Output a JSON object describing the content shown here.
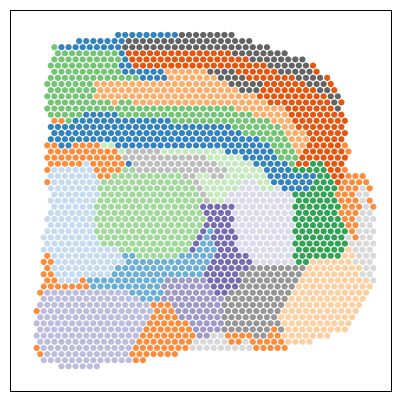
{
  "chart_data": {
    "type": "scatter",
    "title": "",
    "xlabel": "",
    "ylabel": "",
    "xlim": [
      0,
      1
    ],
    "ylim": [
      0,
      1
    ],
    "ticks": false,
    "grid": false,
    "legend": "none",
    "marker": "circle",
    "palette": {
      "cluster-0": "#636363",
      "cluster-1": "#e6550d",
      "cluster-2": "#fd8d3c",
      "cluster-3": "#fdae6b",
      "cluster-4": "#fdd0a2",
      "cluster-5": "#31a354",
      "cluster-6": "#74c476",
      "cluster-7": "#a1d99b",
      "cluster-8": "#c7e9c0",
      "cluster-9": "#3182bd",
      "cluster-10": "#6baed6",
      "cluster-11": "#c6dbef",
      "cluster-12": "#756bb1",
      "cluster-13": "#9e9ac8",
      "cluster-14": "#bcbddc",
      "cluster-15": "#dadaeb",
      "cluster-16": "#969696",
      "cluster-17": "#bdbdbd",
      "cluster-18": "#d9d9d9"
    },
    "series": [
      {
        "cluster": 0,
        "color": "#636363",
        "regions": [
          [
            [
              0.3,
              0.93
            ],
            [
              0.58,
              0.93
            ],
            [
              0.8,
              0.84
            ],
            [
              0.86,
              0.78
            ],
            [
              0.86,
              0.74
            ],
            [
              0.8,
              0.8
            ],
            [
              0.58,
              0.89
            ],
            [
              0.3,
              0.89
            ]
          ]
        ]
      },
      {
        "cluster": 1,
        "color": "#e6550d",
        "regions": [
          [
            [
              0.3,
              0.89
            ],
            [
              0.58,
              0.89
            ],
            [
              0.8,
              0.8
            ],
            [
              0.86,
              0.74
            ],
            [
              0.88,
              0.6
            ],
            [
              0.86,
              0.52
            ],
            [
              0.83,
              0.58
            ],
            [
              0.8,
              0.7
            ],
            [
              0.72,
              0.78
            ],
            [
              0.58,
              0.84
            ],
            [
              0.32,
              0.85
            ]
          ]
        ]
      },
      {
        "cluster": 2,
        "color": "#fd8d3c",
        "regions": [
          [
            [
              0.9,
              0.52
            ],
            [
              0.94,
              0.52
            ],
            [
              0.94,
              0.36
            ],
            [
              0.9,
              0.36
            ]
          ],
          [
            [
              0.62,
              0.3
            ],
            [
              0.7,
              0.28
            ],
            [
              0.66,
              0.14
            ],
            [
              0.56,
              0.12
            ],
            [
              0.58,
              0.22
            ]
          ],
          [
            [
              0.36,
              0.22
            ],
            [
              0.44,
              0.22
            ],
            [
              0.5,
              0.14
            ],
            [
              0.42,
              0.12
            ],
            [
              0.34,
              0.16
            ]
          ],
          [
            [
              0.08,
              0.32
            ],
            [
              0.12,
              0.32
            ],
            [
              0.12,
              0.16
            ],
            [
              0.08,
              0.16
            ]
          ],
          [
            [
              0.1,
              0.62
            ],
            [
              0.2,
              0.62
            ],
            [
              0.2,
              0.58
            ],
            [
              0.1,
              0.58
            ]
          ]
        ]
      },
      {
        "cluster": 3,
        "color": "#fdae6b",
        "regions": [
          [
            [
              0.22,
              0.82
            ],
            [
              0.58,
              0.8
            ],
            [
              0.72,
              0.74
            ],
            [
              0.78,
              0.66
            ],
            [
              0.76,
              0.6
            ],
            [
              0.7,
              0.7
            ],
            [
              0.58,
              0.75
            ],
            [
              0.22,
              0.76
            ]
          ]
        ]
      },
      {
        "cluster": 4,
        "color": "#fdd0a2",
        "regions": [
          [
            [
              0.78,
              0.34
            ],
            [
              0.9,
              0.38
            ],
            [
              0.94,
              0.26
            ],
            [
              0.86,
              0.16
            ],
            [
              0.72,
              0.12
            ],
            [
              0.7,
              0.22
            ]
          ]
        ]
      },
      {
        "cluster": 5,
        "color": "#31a354",
        "regions": [
          [
            [
              0.74,
              0.5
            ],
            [
              0.84,
              0.52
            ],
            [
              0.88,
              0.44
            ],
            [
              0.88,
              0.36
            ],
            [
              0.82,
              0.34
            ],
            [
              0.76,
              0.4
            ]
          ]
        ]
      },
      {
        "cluster": 6,
        "color": "#74c476",
        "regions": [
          [
            [
              0.1,
              0.9
            ],
            [
              0.28,
              0.9
            ],
            [
              0.3,
              0.86
            ],
            [
              0.22,
              0.82
            ],
            [
              0.22,
              0.74
            ],
            [
              0.14,
              0.7
            ],
            [
              0.12,
              0.76
            ],
            [
              0.1,
              0.84
            ]
          ],
          [
            [
              0.28,
              0.76
            ],
            [
              0.58,
              0.75
            ],
            [
              0.7,
              0.7
            ],
            [
              0.76,
              0.62
            ],
            [
              0.74,
              0.58
            ],
            [
              0.66,
              0.66
            ],
            [
              0.56,
              0.7
            ],
            [
              0.3,
              0.72
            ]
          ]
        ]
      },
      {
        "cluster": 7,
        "color": "#a1d99b",
        "regions": [
          [
            [
              0.24,
              0.56
            ],
            [
              0.34,
              0.58
            ],
            [
              0.48,
              0.56
            ],
            [
              0.52,
              0.48
            ],
            [
              0.48,
              0.38
            ],
            [
              0.4,
              0.34
            ],
            [
              0.3,
              0.36
            ],
            [
              0.22,
              0.4
            ],
            [
              0.22,
              0.48
            ]
          ]
        ]
      },
      {
        "cluster": 8,
        "color": "#c7e9c0",
        "regions": [
          [
            [
              0.2,
              0.66
            ],
            [
              0.3,
              0.7
            ],
            [
              0.56,
              0.68
            ],
            [
              0.66,
              0.62
            ],
            [
              0.72,
              0.56
            ],
            [
              0.68,
              0.52
            ],
            [
              0.6,
              0.58
            ],
            [
              0.46,
              0.62
            ],
            [
              0.3,
              0.62
            ]
          ]
        ]
      },
      {
        "cluster": 9,
        "color": "#3182bd",
        "regions": [
          [
            [
              0.1,
              0.7
            ],
            [
              0.14,
              0.7
            ],
            [
              0.22,
              0.74
            ],
            [
              0.3,
              0.72
            ],
            [
              0.56,
              0.7
            ],
            [
              0.66,
              0.66
            ],
            [
              0.74,
              0.58
            ],
            [
              0.8,
              0.58
            ],
            [
              0.78,
              0.52
            ],
            [
              0.72,
              0.52
            ],
            [
              0.64,
              0.6
            ],
            [
              0.54,
              0.64
            ],
            [
              0.3,
              0.64
            ],
            [
              0.2,
              0.66
            ],
            [
              0.14,
              0.64
            ],
            [
              0.1,
              0.66
            ]
          ],
          [
            [
              0.2,
              0.94
            ],
            [
              0.26,
              0.94
            ],
            [
              0.26,
              0.92
            ],
            [
              0.2,
              0.92
            ]
          ]
        ]
      },
      {
        "cluster": 10,
        "color": "#6baed6",
        "regions": [
          [
            [
              0.2,
              0.3
            ],
            [
              0.4,
              0.3
            ],
            [
              0.48,
              0.36
            ],
            [
              0.52,
              0.44
            ],
            [
              0.54,
              0.38
            ],
            [
              0.5,
              0.3
            ],
            [
              0.44,
              0.26
            ],
            [
              0.3,
              0.26
            ],
            [
              0.2,
              0.26
            ]
          ]
        ]
      },
      {
        "cluster": 11,
        "color": "#c6dbef",
        "regions": [
          [
            [
              0.1,
              0.58
            ],
            [
              0.2,
              0.6
            ],
            [
              0.24,
              0.56
            ],
            [
              0.22,
              0.46
            ],
            [
              0.22,
              0.38
            ],
            [
              0.3,
              0.34
            ],
            [
              0.22,
              0.3
            ],
            [
              0.12,
              0.28
            ],
            [
              0.1,
              0.4
            ]
          ]
        ]
      },
      {
        "cluster": 12,
        "color": "#756bb1",
        "regions": [
          [
            [
              0.5,
              0.5
            ],
            [
              0.58,
              0.5
            ],
            [
              0.6,
              0.4
            ],
            [
              0.6,
              0.28
            ],
            [
              0.56,
              0.24
            ],
            [
              0.5,
              0.28
            ],
            [
              0.54,
              0.38
            ]
          ]
        ]
      },
      {
        "cluster": 13,
        "color": "#9e9ac8",
        "regions": [
          [
            [
              0.4,
              0.3
            ],
            [
              0.5,
              0.3
            ],
            [
              0.56,
              0.24
            ],
            [
              0.58,
              0.16
            ],
            [
              0.5,
              0.14
            ],
            [
              0.44,
              0.2
            ],
            [
              0.4,
              0.24
            ]
          ]
        ]
      },
      {
        "cluster": 14,
        "color": "#bcbddc",
        "regions": [
          [
            [
              0.08,
              0.26
            ],
            [
              0.3,
              0.26
            ],
            [
              0.38,
              0.22
            ],
            [
              0.34,
              0.14
            ],
            [
              0.26,
              0.08
            ],
            [
              0.1,
              0.08
            ],
            [
              0.06,
              0.14
            ]
          ]
        ]
      },
      {
        "cluster": 15,
        "color": "#dadaeb",
        "regions": [
          [
            [
              0.58,
              0.48
            ],
            [
              0.7,
              0.5
            ],
            [
              0.74,
              0.46
            ],
            [
              0.72,
              0.38
            ],
            [
              0.64,
              0.34
            ],
            [
              0.6,
              0.38
            ]
          ]
        ]
      },
      {
        "cluster": 16,
        "color": "#969696",
        "regions": [
          [
            [
              0.56,
              0.24
            ],
            [
              0.64,
              0.32
            ],
            [
              0.72,
              0.34
            ],
            [
              0.78,
              0.32
            ],
            [
              0.72,
              0.22
            ],
            [
              0.66,
              0.14
            ],
            [
              0.56,
              0.16
            ]
          ]
        ]
      },
      {
        "cluster": 17,
        "color": "#bdbdbd",
        "regions": [
          [
            [
              0.3,
              0.64
            ],
            [
              0.5,
              0.62
            ],
            [
              0.58,
              0.58
            ],
            [
              0.56,
              0.56
            ],
            [
              0.44,
              0.58
            ],
            [
              0.3,
              0.6
            ]
          ]
        ]
      },
      {
        "cluster": 18,
        "color": "#d9d9d9",
        "regions": [
          [
            [
              0.9,
              0.56
            ],
            [
              0.94,
              0.52
            ],
            [
              0.96,
              0.36
            ],
            [
              0.94,
              0.3
            ],
            [
              0.9,
              0.34
            ],
            [
              0.92,
              0.5
            ]
          ],
          [
            [
              0.48,
              0.12
            ],
            [
              0.62,
              0.12
            ],
            [
              0.6,
              0.1
            ],
            [
              0.48,
              0.1
            ]
          ]
        ]
      }
    ],
    "tissue_outline": [
      [
        0.11,
        0.91
      ],
      [
        0.22,
        0.93
      ],
      [
        0.3,
        0.94
      ],
      [
        0.58,
        0.94
      ],
      [
        0.8,
        0.86
      ],
      [
        0.87,
        0.78
      ],
      [
        0.89,
        0.64
      ],
      [
        0.88,
        0.58
      ],
      [
        0.92,
        0.58
      ],
      [
        0.95,
        0.52
      ],
      [
        0.96,
        0.38
      ],
      [
        0.95,
        0.26
      ],
      [
        0.88,
        0.16
      ],
      [
        0.72,
        0.11
      ],
      [
        0.56,
        0.1
      ],
      [
        0.44,
        0.1
      ],
      [
        0.3,
        0.07
      ],
      [
        0.14,
        0.06
      ],
      [
        0.07,
        0.08
      ],
      [
        0.06,
        0.16
      ],
      [
        0.08,
        0.3
      ],
      [
        0.08,
        0.4
      ],
      [
        0.1,
        0.5
      ],
      [
        0.09,
        0.6
      ],
      [
        0.1,
        0.68
      ],
      [
        0.09,
        0.8
      ]
    ]
  }
}
